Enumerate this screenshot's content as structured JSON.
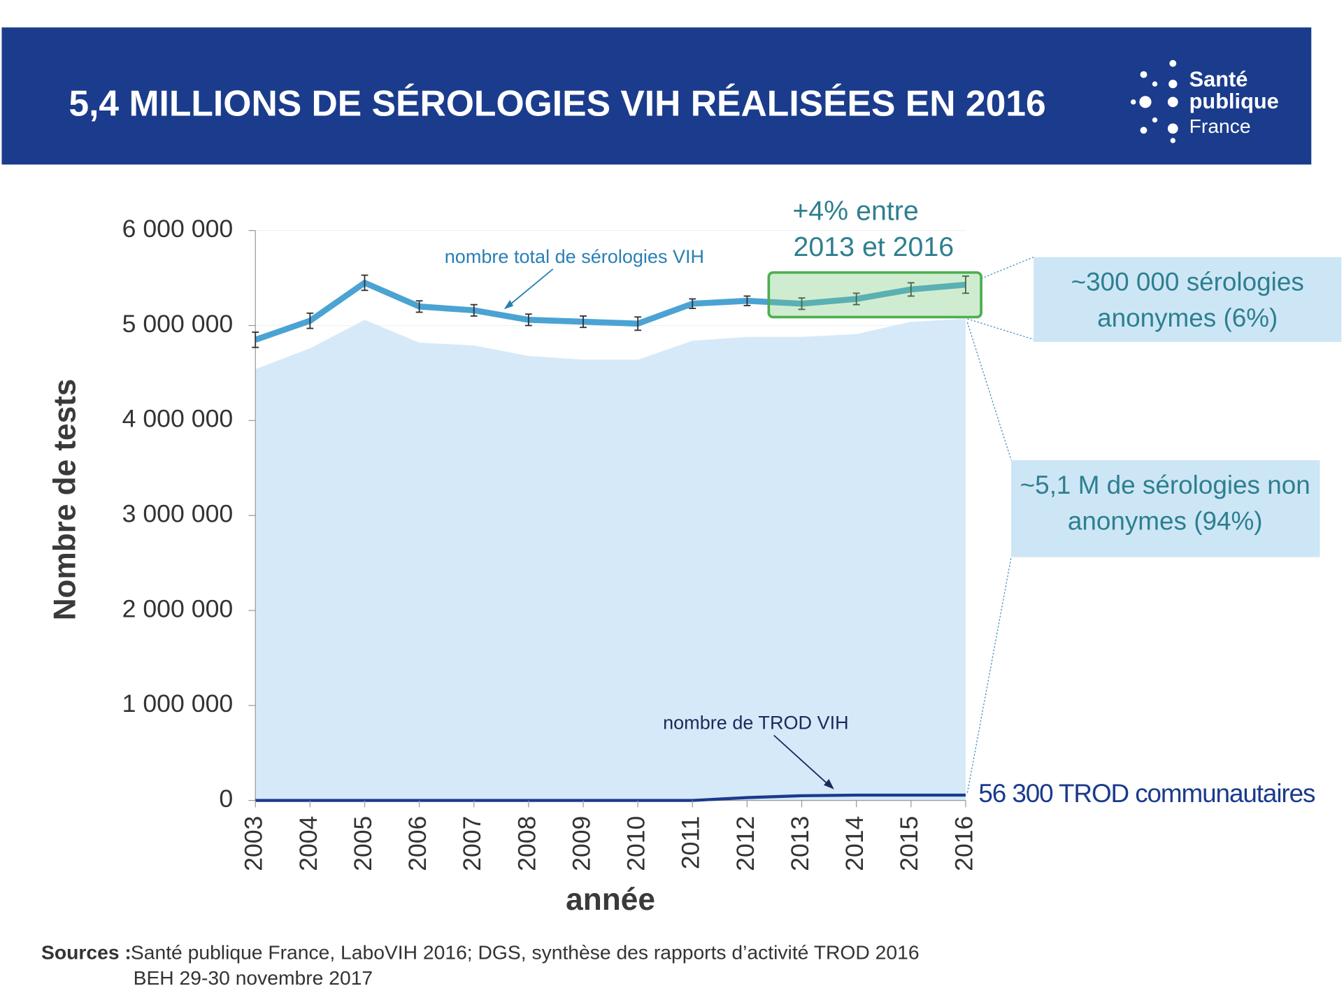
{
  "header": {
    "title": "5,4 MILLIONS DE SÉROLOGIES VIH RÉALISÉES EN 2016",
    "logo": [
      "Santé",
      "publique",
      "France"
    ]
  },
  "chart_data": {
    "type": "line",
    "categories": [
      "2003",
      "2004",
      "2005",
      "2006",
      "2007",
      "2008",
      "2009",
      "2010",
      "2011",
      "2012",
      "2013",
      "2014",
      "2015",
      "2016"
    ],
    "series": [
      {
        "name": "nombre total de sérologies VIH",
        "color": "#4ba3d3",
        "type": "line",
        "values": [
          4850000,
          5050000,
          5450000,
          5200000,
          5160000,
          5060000,
          5040000,
          5020000,
          5230000,
          5260000,
          5230000,
          5280000,
          5380000,
          5430000
        ],
        "errors": [
          80000,
          80000,
          80000,
          60000,
          60000,
          60000,
          60000,
          70000,
          50000,
          50000,
          60000,
          60000,
          70000,
          90000
        ]
      },
      {
        "name": "nombre de TROD VIH",
        "color": "#1a3a8c",
        "type": "line",
        "values": [
          0,
          0,
          0,
          0,
          0,
          0,
          0,
          0,
          0,
          30000,
          50000,
          56000,
          56000,
          56300
        ]
      },
      {
        "color": "#d6e9f8",
        "type": "area",
        "values": [
          4540000,
          4760000,
          5060000,
          4820000,
          4790000,
          4680000,
          4640000,
          4640000,
          4840000,
          4880000,
          4880000,
          4910000,
          5040000,
          5070000
        ]
      }
    ],
    "ylim": [
      0,
      6000000
    ],
    "yticks": [
      {
        "value": 0,
        "label": "0"
      },
      {
        "value": 1000000,
        "label": "1 000 000"
      },
      {
        "value": 2000000,
        "label": "2 000 000"
      },
      {
        "value": 3000000,
        "label": "3 000 000"
      },
      {
        "value": 4000000,
        "label": "4 000 000"
      },
      {
        "value": 5000000,
        "label": "5 000 000"
      },
      {
        "value": 6000000,
        "label": "6 000 000"
      }
    ],
    "grid": true,
    "y_label": "Nombre de tests",
    "x_label": "année",
    "annotation_growth": [
      "+4% entre",
      "2013 et 2016"
    ],
    "annotation_anonymous": [
      "~300 000 sérologies",
      "anonymes (6%)"
    ],
    "annotation_non_anonymous": [
      "~5,1 M de sérologies non",
      "anonymes (94%)"
    ],
    "annotation_trod": "56 300 TROD communautaires"
  },
  "sources": {
    "label": "Sources :",
    "lines": [
      "Santé publique France, LaboVIH 2016; DGS, synthèse des rapports d’activité TROD 2016",
      "BEH 29-30 novembre 2017"
    ]
  }
}
